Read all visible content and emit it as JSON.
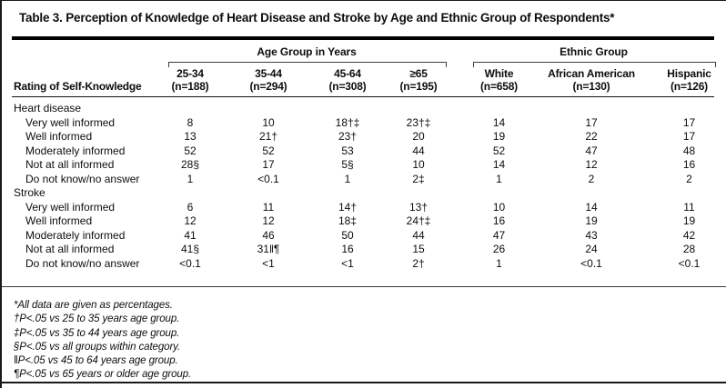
{
  "title": "Table 3. Perception of Knowledge of Heart Disease and Stroke by Age and Ethnic Group of Respondents*",
  "stub_header": "Rating of Self-Knowledge",
  "col_groups": [
    {
      "label": "Age Group in Years",
      "columns": [
        {
          "range": "25-34",
          "n": "(n=188)"
        },
        {
          "range": "35-44",
          "n": "(n=294)"
        },
        {
          "range": "45-64",
          "n": "(n=308)"
        },
        {
          "range": "≥65",
          "n": "(n=195)"
        }
      ]
    },
    {
      "label": "Ethnic Group",
      "columns": [
        {
          "range": "White",
          "n": "(n=658)"
        },
        {
          "range": "African American",
          "n": "(n=130)"
        },
        {
          "range": "Hispanic",
          "n": "(n=126)"
        }
      ]
    }
  ],
  "sections": [
    {
      "label": "Heart disease",
      "rows": [
        {
          "label": "Very well informed",
          "values": [
            "8",
            "10",
            "18†‡",
            "23†‡",
            "14",
            "17",
            "17"
          ]
        },
        {
          "label": "Well informed",
          "values": [
            "13",
            "21†",
            "23†",
            "20",
            "19",
            "22",
            "17"
          ]
        },
        {
          "label": "Moderately informed",
          "values": [
            "52",
            "52",
            "53",
            "44",
            "52",
            "47",
            "48"
          ]
        },
        {
          "label": "Not at all informed",
          "values": [
            "28§",
            "17",
            "5§",
            "10",
            "14",
            "12",
            "16"
          ]
        },
        {
          "label": "Do not know/no answer",
          "values": [
            "1",
            "<0.1",
            "1",
            "2‡",
            "1",
            "2",
            "2"
          ]
        }
      ]
    },
    {
      "label": "Stroke",
      "rows": [
        {
          "label": "Very well informed",
          "values": [
            "6",
            "11",
            "14†",
            "13†",
            "10",
            "14",
            "11"
          ]
        },
        {
          "label": "Well informed",
          "values": [
            "12",
            "12",
            "18‡",
            "24†‡",
            "16",
            "19",
            "19"
          ]
        },
        {
          "label": "Moderately informed",
          "values": [
            "41",
            "46",
            "50",
            "44",
            "47",
            "43",
            "42"
          ]
        },
        {
          "label": "Not at all informed",
          "values": [
            "41§",
            "31‖¶",
            "16",
            "15",
            "26",
            "24",
            "28"
          ]
        },
        {
          "label": "Do not know/no answer",
          "values": [
            "<0.1",
            "<1",
            "<1",
            "2†",
            "1",
            "<0.1",
            "<0.1"
          ]
        }
      ]
    }
  ],
  "footnotes": [
    "*All data are given as percentages.",
    "†P<.05 vs 25 to 35 years age group.",
    "‡P<.05 vs 35 to 44 years age group.",
    "§P<.05 vs all groups within category.",
    "‖P<.05 vs 45 to 64 years age group.",
    "¶P<.05 vs 65 years or older age group."
  ],
  "colors": {
    "text": "#0d0d0d",
    "rule_heavy": "#000000",
    "rule_light": "#3a3a3a",
    "background": "#ffffff"
  }
}
